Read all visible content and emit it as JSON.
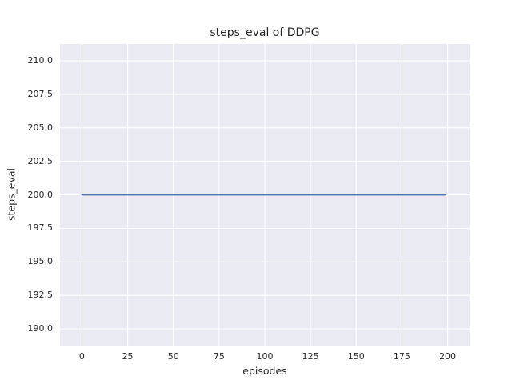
{
  "chart_data": {
    "type": "line",
    "title": "steps_eval of DDPG",
    "xlabel": "episodes",
    "ylabel": "steps_eval",
    "xlim": [
      -12,
      212
    ],
    "ylim": [
      188.75,
      211.25
    ],
    "xtick_values": [
      0,
      25,
      50,
      75,
      100,
      125,
      150,
      175,
      200
    ],
    "xtick_labels": [
      "0",
      "25",
      "50",
      "75",
      "100",
      "125",
      "150",
      "175",
      "200"
    ],
    "ytick_values": [
      190.0,
      192.5,
      195.0,
      197.5,
      200.0,
      202.5,
      205.0,
      207.5,
      210.0
    ],
    "ytick_labels": [
      "190.0",
      "192.5",
      "195.0",
      "197.5",
      "200.0",
      "202.5",
      "205.0",
      "207.5",
      "210.0"
    ],
    "grid": true,
    "legend": "none",
    "series": [
      {
        "name": "DDPG",
        "color": "#4c72b0",
        "points": [
          [
            0,
            200
          ],
          [
            199,
            200
          ]
        ]
      }
    ],
    "colors": {
      "figure_bg": "#ffffff",
      "plot_bg": "#eaeaf2",
      "grid": "#ffffff",
      "text": "#262626"
    }
  }
}
